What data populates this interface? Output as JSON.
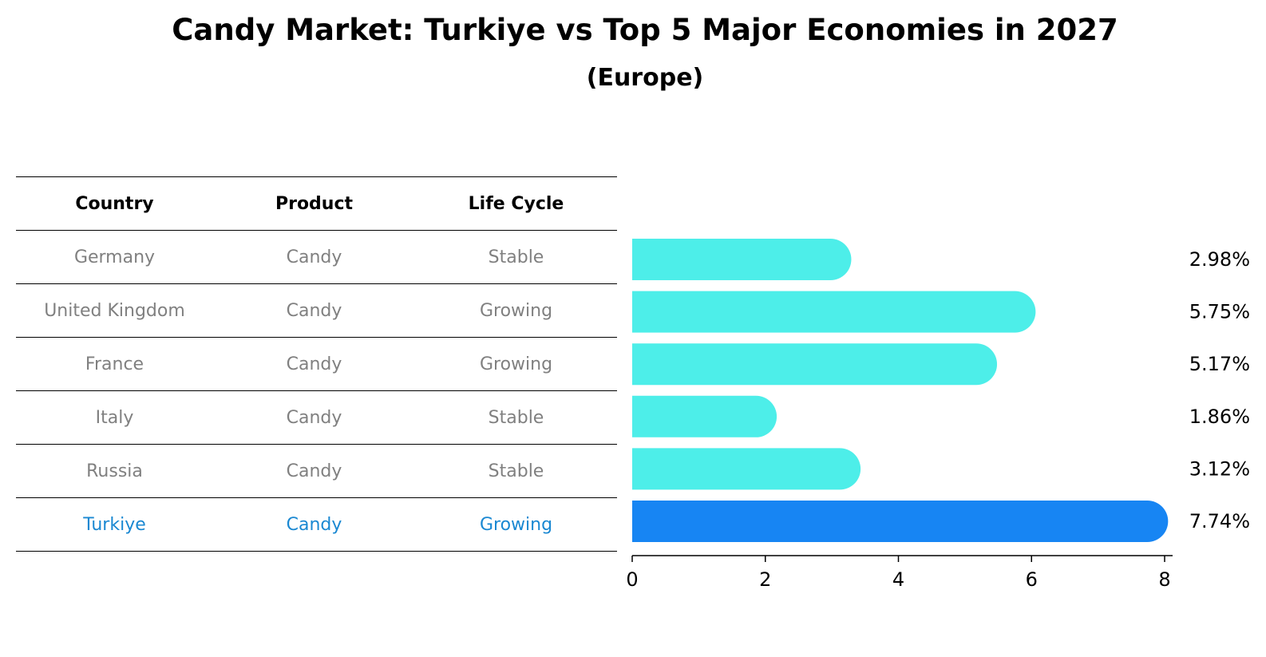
{
  "chart_data": {
    "type": "bar",
    "orientation": "horizontal",
    "title": "Candy Market: Turkiye vs Top 5 Major Economies in 2027",
    "subtitle": "(Europe)",
    "table": {
      "headers": [
        "Country",
        "Product",
        "Life Cycle"
      ],
      "rows": [
        [
          "Germany",
          "Candy",
          "Stable"
        ],
        [
          "United Kingdom",
          "Candy",
          "Growing"
        ],
        [
          "France",
          "Candy",
          "Growing"
        ],
        [
          "Italy",
          "Candy",
          "Stable"
        ],
        [
          "Russia",
          "Candy",
          "Stable"
        ],
        [
          "Turkiye",
          "Candy",
          "Growing"
        ]
      ],
      "highlight_row": 5
    },
    "categories": [
      "Germany",
      "United Kingdom",
      "France",
      "Italy",
      "Russia",
      "Turkiye"
    ],
    "values": [
      2.98,
      5.75,
      5.17,
      1.86,
      3.12,
      7.74
    ],
    "value_labels": [
      "2.98%",
      "5.75%",
      "5.17%",
      "1.86%",
      "3.12%",
      "7.74%"
    ],
    "xlim": [
      0,
      8
    ],
    "xticks": [
      0,
      2,
      4,
      6,
      8
    ],
    "grid": false,
    "colors": {
      "bar": "#4deee9",
      "highlight_bar": "#1785f3",
      "highlight_text": "#1a88d2",
      "muted_text": "#808080"
    }
  }
}
